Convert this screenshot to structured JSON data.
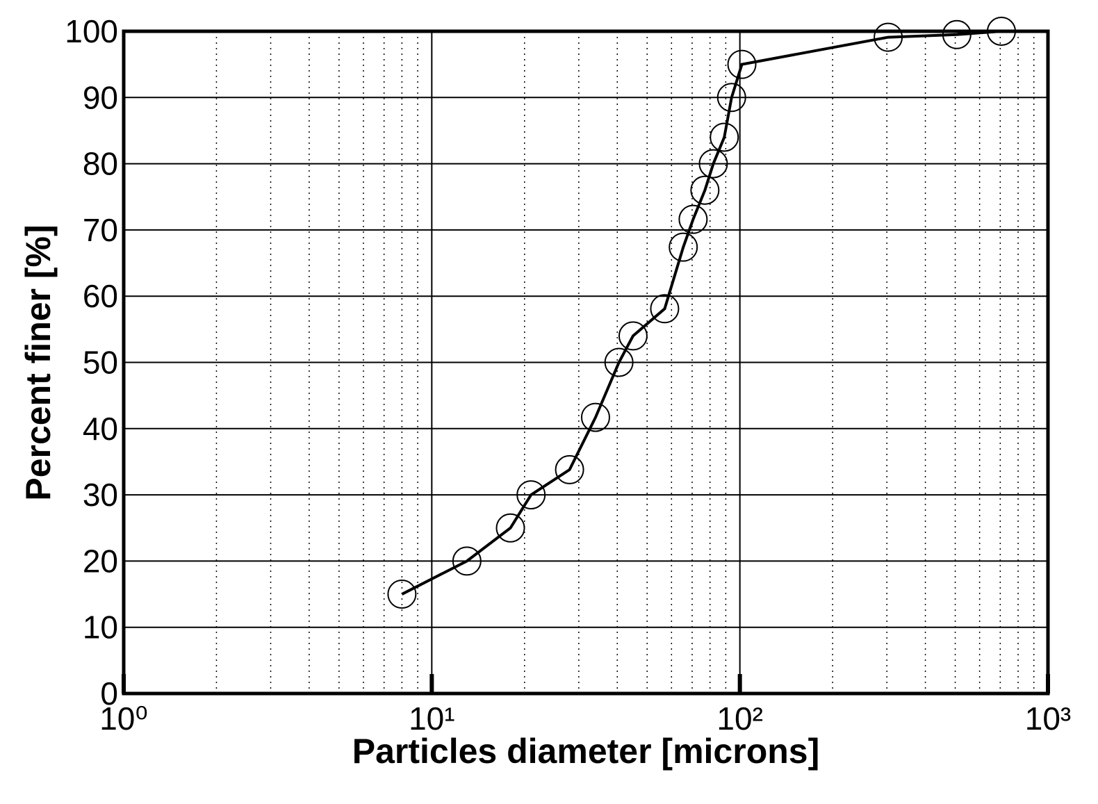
{
  "chart_data": {
    "type": "line",
    "xlabel": "Particles diameter [microns]",
    "ylabel": "Percent finer [%]",
    "xscale": "log",
    "xlim": [
      1,
      1000
    ],
    "ylim": [
      0,
      100
    ],
    "xticks": [
      {
        "value": 1,
        "label": "10⁰"
      },
      {
        "value": 10,
        "label": "10¹"
      },
      {
        "value": 100,
        "label": "10²"
      },
      {
        "value": 1000,
        "label": "10³"
      }
    ],
    "xminorticks": [
      2,
      3,
      4,
      5,
      6,
      7,
      8,
      9,
      20,
      30,
      40,
      50,
      60,
      70,
      80,
      90,
      200,
      300,
      400,
      500,
      600,
      700,
      800,
      900
    ],
    "yticks": [
      0,
      10,
      20,
      30,
      40,
      50,
      60,
      70,
      80,
      90,
      100
    ],
    "grid": true,
    "color": "#000000",
    "x": [
      8,
      13,
      18,
      21,
      28,
      34,
      40.5,
      45,
      57,
      65.5,
      70.5,
      77,
      82,
      89,
      94,
      101.5,
      303,
      506,
      706
    ],
    "values": [
      15,
      20,
      25,
      30,
      33.8,
      41.7,
      50,
      54,
      58.1,
      67.4,
      71.6,
      76,
      80,
      84,
      90,
      95,
      99.1,
      99.5,
      100
    ]
  }
}
